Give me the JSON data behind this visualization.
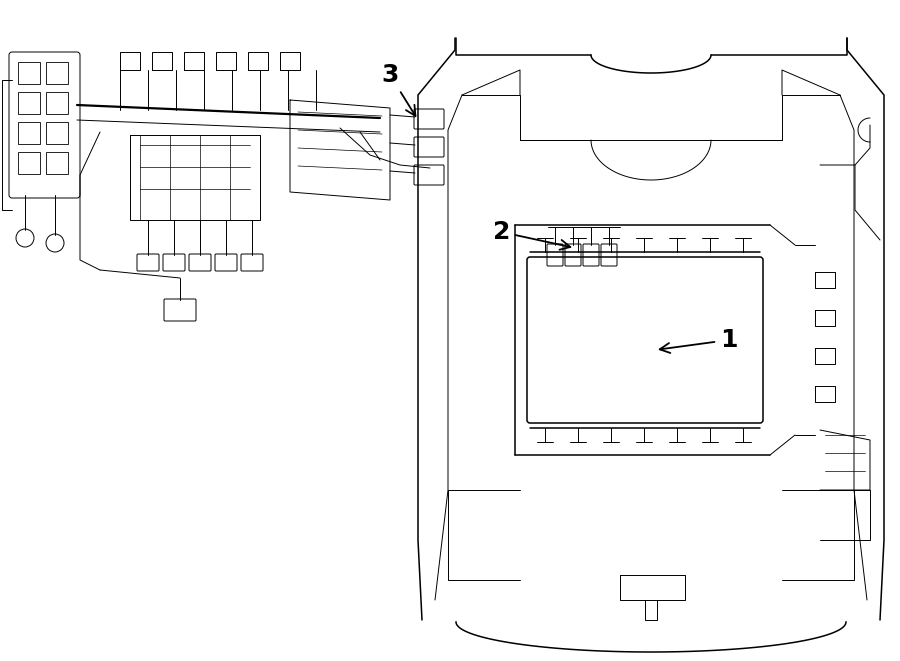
{
  "background_color": "#ffffff",
  "line_color": "#000000",
  "label_color": "#000000",
  "fig_width": 9.0,
  "fig_height": 6.61,
  "dpi": 100
}
